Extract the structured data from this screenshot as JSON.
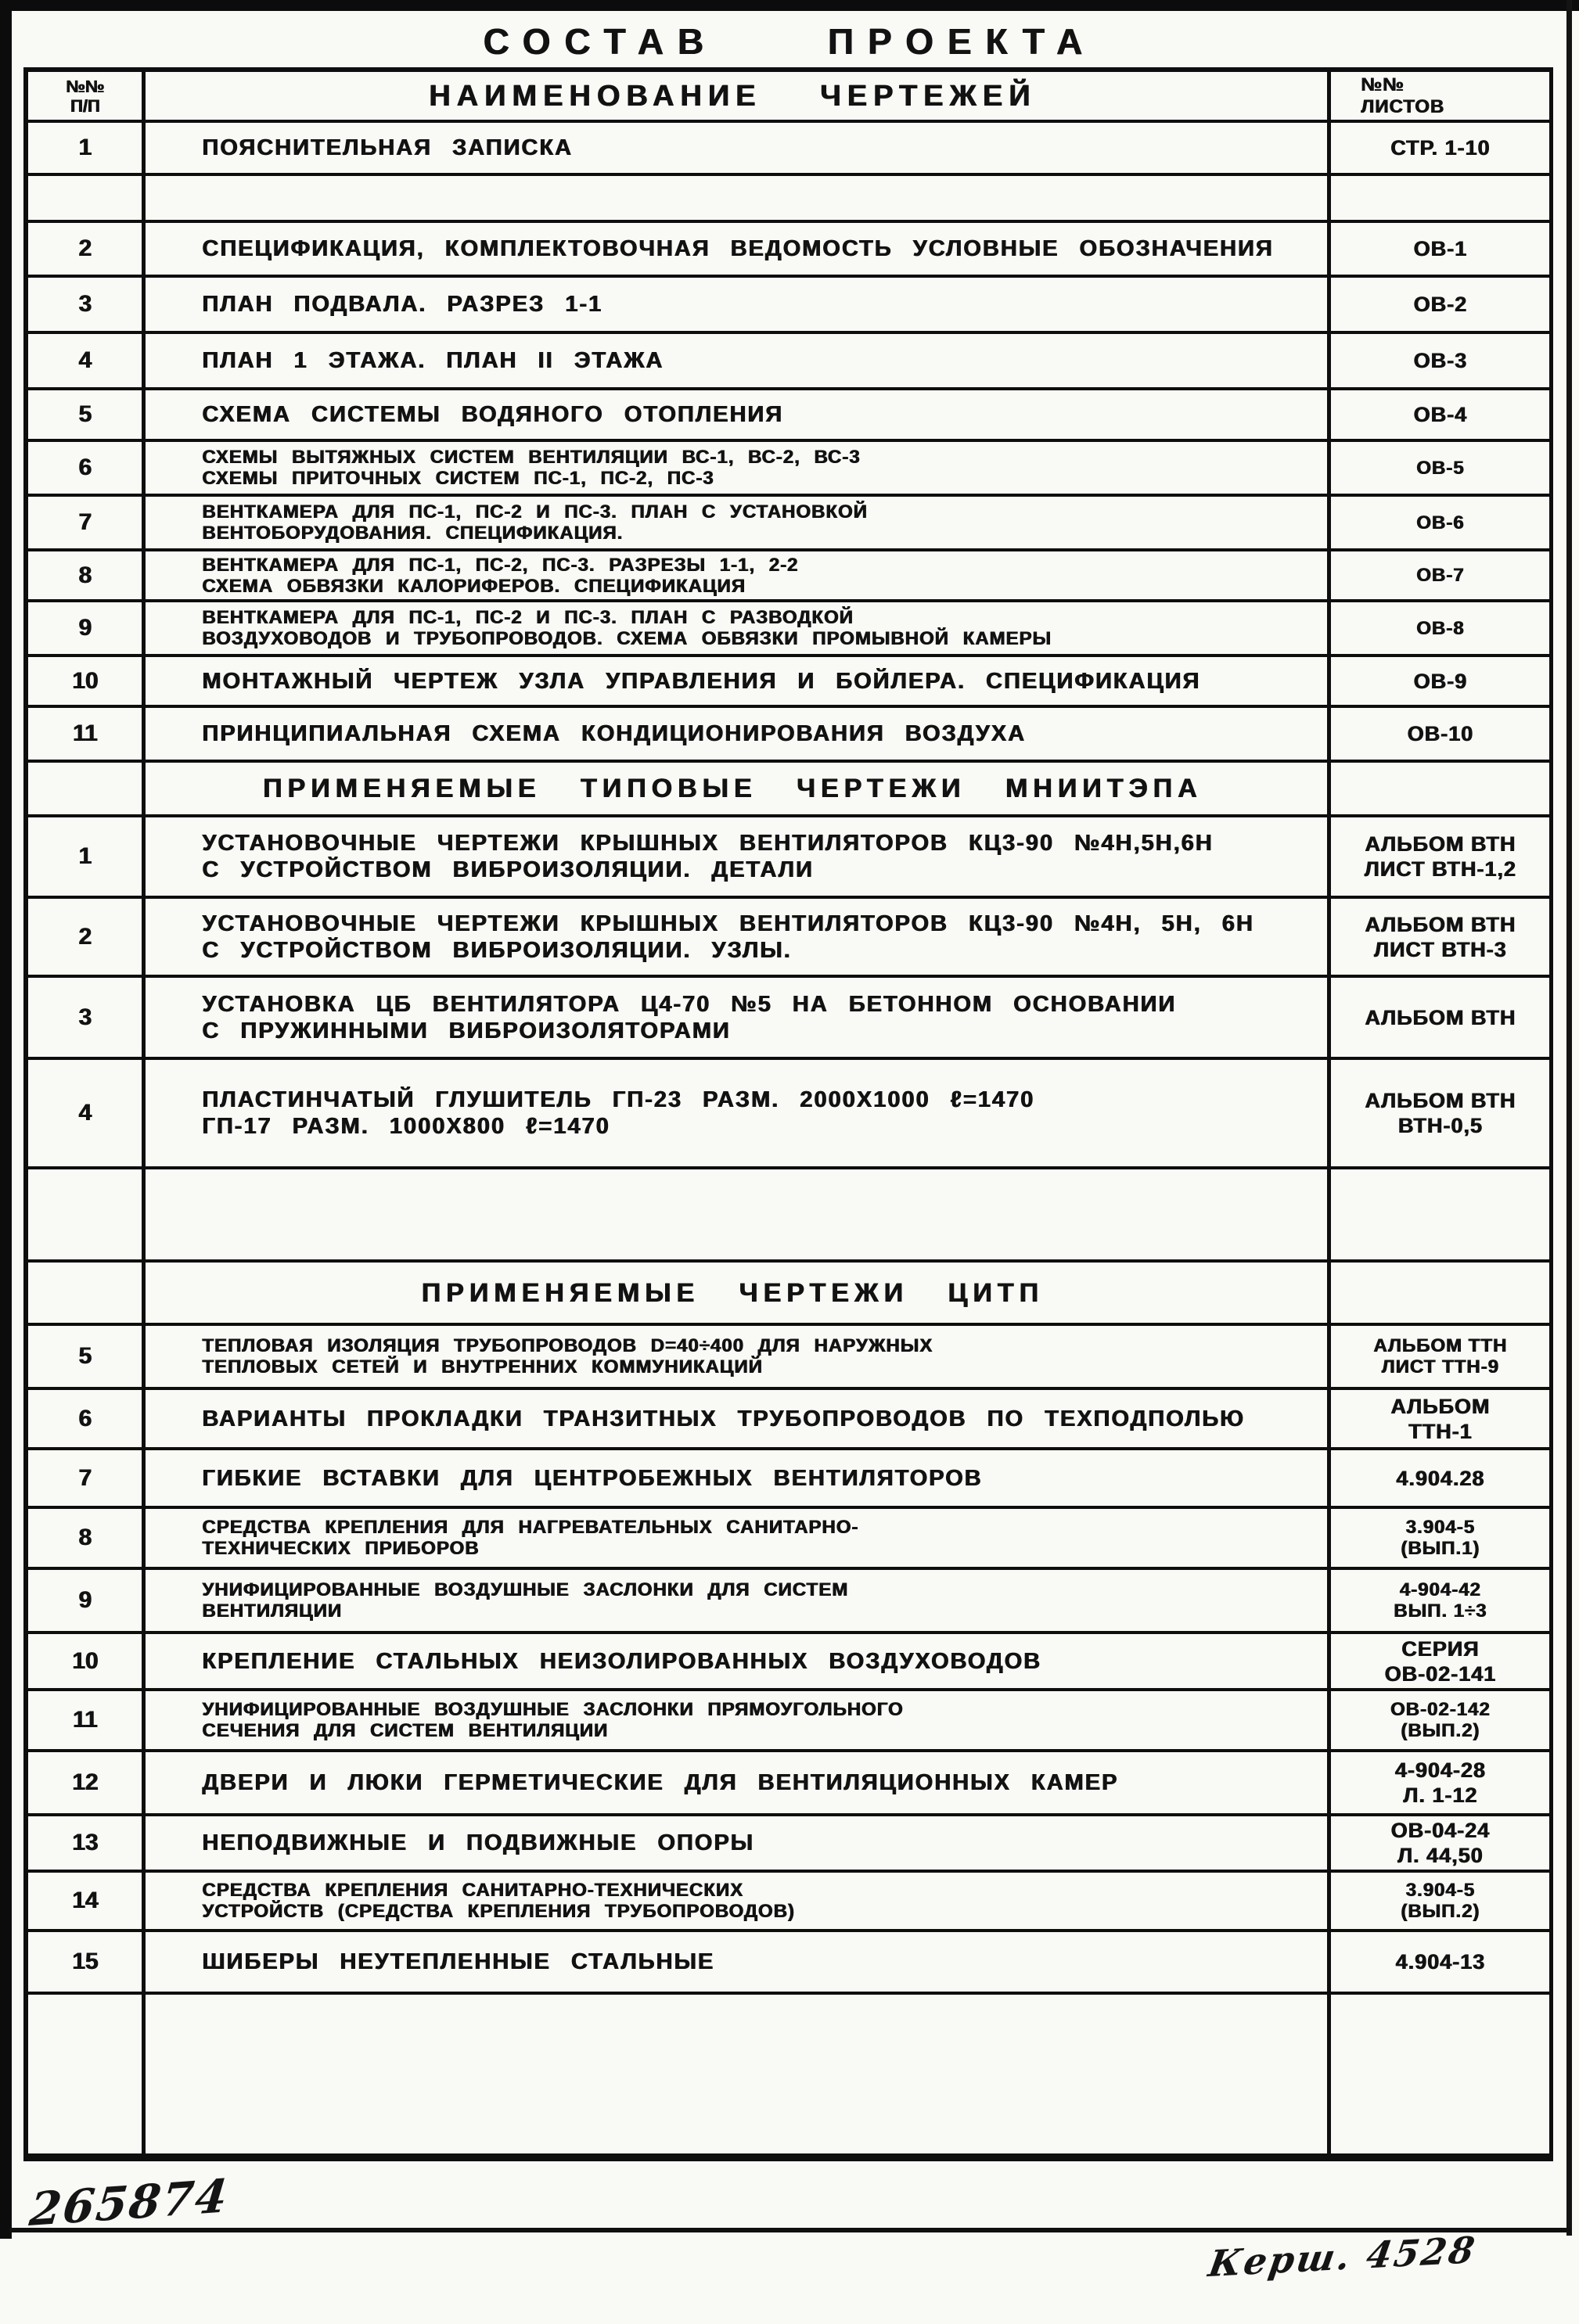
{
  "document": {
    "title": "Состав проекта",
    "stamp_number": "265874",
    "signature": "Керш. 4528",
    "ink_color": "#121212",
    "paper_color": "#f9f9f6"
  },
  "table": {
    "columns": {
      "num_lines": [
        "№№",
        "п/п"
      ],
      "name": "Наименование чертежей",
      "sheets_lines": [
        "№№",
        "листов"
      ]
    },
    "rows": [
      {
        "type": "header"
      },
      {
        "type": "item",
        "num": "1",
        "name": [
          "Пояснительная записка"
        ],
        "sheets": [
          "стр. 1-10"
        ]
      },
      {
        "type": "empty"
      },
      {
        "type": "item",
        "num": "2",
        "name": [
          "Спецификация, Комплектовочная ведомость Условные обозначения"
        ],
        "sheets": [
          "ОВ-1"
        ]
      },
      {
        "type": "item",
        "num": "3",
        "name": [
          "План подвала. Разрез 1-1"
        ],
        "sheets": [
          "ОВ-2"
        ]
      },
      {
        "type": "item",
        "num": "4",
        "name": [
          "План 1 этажа. План II этажа"
        ],
        "sheets": [
          "ОВ-3"
        ]
      },
      {
        "type": "item",
        "num": "5",
        "name": [
          "Схема системы водяного отопления"
        ],
        "sheets": [
          "ОВ-4"
        ]
      },
      {
        "type": "item",
        "num": "6",
        "name": [
          "Схемы вытяжных систем вентиляции ВС-1, ВС-2, ВС-3",
          "Схемы приточных систем ПС-1, ПС-2, ПС-3"
        ],
        "sheets": [
          "ОВ-5"
        ]
      },
      {
        "type": "item",
        "num": "7",
        "name": [
          "Венткамера для ПС-1, ПС-2 и ПС-3. План с установкой",
          "вентоборудования. Спецификация."
        ],
        "sheets": [
          "ОВ-6"
        ]
      },
      {
        "type": "item",
        "num": "8",
        "name": [
          "Венткамера для ПС-1, ПС-2, ПС-3. Разрезы 1-1, 2-2",
          "Схема обвязки калориферов. Спецификация"
        ],
        "sheets": [
          "ОВ-7"
        ]
      },
      {
        "type": "item",
        "num": "9",
        "name": [
          "Венткамера для ПС-1, ПС-2 и ПС-3. План с разводкой",
          "воздуховодов и трубопроводов. Схема обвязки промывной камеры"
        ],
        "sheets": [
          "ОВ-8"
        ]
      },
      {
        "type": "item",
        "num": "10",
        "name": [
          "Монтажный чертеж узла управления и бойлера. Спецификация"
        ],
        "sheets": [
          "ОВ-9"
        ]
      },
      {
        "type": "item",
        "num": "11",
        "name": [
          "Принципиальная схема кондиционирования воздуха"
        ],
        "sheets": [
          "ОВ-10"
        ]
      },
      {
        "type": "section",
        "title": "Применяемые типовые чертежи МНИИТЭПа"
      },
      {
        "type": "item",
        "num": "1",
        "name": [
          "Установочные чертежи крышных вентиляторов КЦ3-90 №4н,5н,6н",
          "с устройством виброизоляции. Детали"
        ],
        "sheets": [
          "Альбом ВТН",
          "Лист ВТН-1,2"
        ]
      },
      {
        "type": "item",
        "num": "2",
        "name": [
          "Установочные чертежи крышных вентиляторов КЦ3-90 №4н, 5н, 6н",
          "с устройством виброизоляции. Узлы."
        ],
        "sheets": [
          "Альбом ВТН",
          "Лист ВТН-3"
        ]
      },
      {
        "type": "item",
        "num": "3",
        "name": [
          "Установка ЦБ вентилятора Ц4-70 №5 на бетонном основании",
          "с пружинными виброизоляторами"
        ],
        "sheets": [
          "Альбом ВТН"
        ]
      },
      {
        "type": "item",
        "num": "4",
        "name": [
          "Пластинчатый глушитель ГП-23 разм. 2000х1000 ℓ=1470",
          "ГП-17 разм. 1000х800 ℓ=1470"
        ],
        "sheets": [
          "Альбом ВТН",
          "ВТН-0,5"
        ]
      },
      {
        "type": "empty"
      },
      {
        "type": "section",
        "title": "Применяемые чертежи ЦИТП"
      },
      {
        "type": "item",
        "num": "5",
        "name": [
          "Тепловая изоляция трубопроводов d=40÷400 для наружных",
          "тепловых сетей и внутренних коммуникаций"
        ],
        "sheets": [
          "Альбом ТТН",
          "Лист ТТН-9"
        ]
      },
      {
        "type": "item",
        "num": "6",
        "name": [
          "Варианты прокладки транзитных трубопроводов по техподполью"
        ],
        "sheets": [
          "Альбом",
          "ТТН-1"
        ]
      },
      {
        "type": "item",
        "num": "7",
        "name": [
          "Гибкие вставки для центробежных вентиляторов"
        ],
        "sheets": [
          "4.904.28"
        ]
      },
      {
        "type": "item",
        "num": "8",
        "name": [
          "Средства крепления для нагревательных санитарно-",
          "технических приборов"
        ],
        "sheets": [
          "3.904-5",
          "(вып.1)"
        ]
      },
      {
        "type": "item",
        "num": "9",
        "name": [
          "Унифицированные воздушные заслонки для систем",
          "вентиляции"
        ],
        "sheets": [
          "4-904-42",
          "вып. 1÷3"
        ]
      },
      {
        "type": "item",
        "num": "10",
        "name": [
          "Крепление стальных неизолированных воздуховодов"
        ],
        "sheets": [
          "Серия",
          "ОВ-02-141"
        ]
      },
      {
        "type": "item",
        "num": "11",
        "name": [
          "Унифицированные воздушные заслонки прямоугольного",
          "сечения для систем вентиляции"
        ],
        "sheets": [
          "ОВ-02-142",
          "(вып.2)"
        ]
      },
      {
        "type": "item",
        "num": "12",
        "name": [
          "Двери и люки герметические для вентиляционных камер"
        ],
        "sheets": [
          "4-904-28",
          "л. 1-12"
        ]
      },
      {
        "type": "item",
        "num": "13",
        "name": [
          "Неподвижные и подвижные опоры"
        ],
        "sheets": [
          "ОВ-04-24",
          "л. 44,50"
        ]
      },
      {
        "type": "item",
        "num": "14",
        "name": [
          "Средства крепления санитарно-технических",
          "устройств (средства крепления трубопроводов)"
        ],
        "sheets": [
          "3.904-5",
          "(вып.2)"
        ]
      },
      {
        "type": "item",
        "num": "15",
        "name": [
          "Шиберы неутепленные стальные"
        ],
        "sheets": [
          "4.904-13"
        ]
      },
      {
        "type": "empty"
      }
    ]
  }
}
